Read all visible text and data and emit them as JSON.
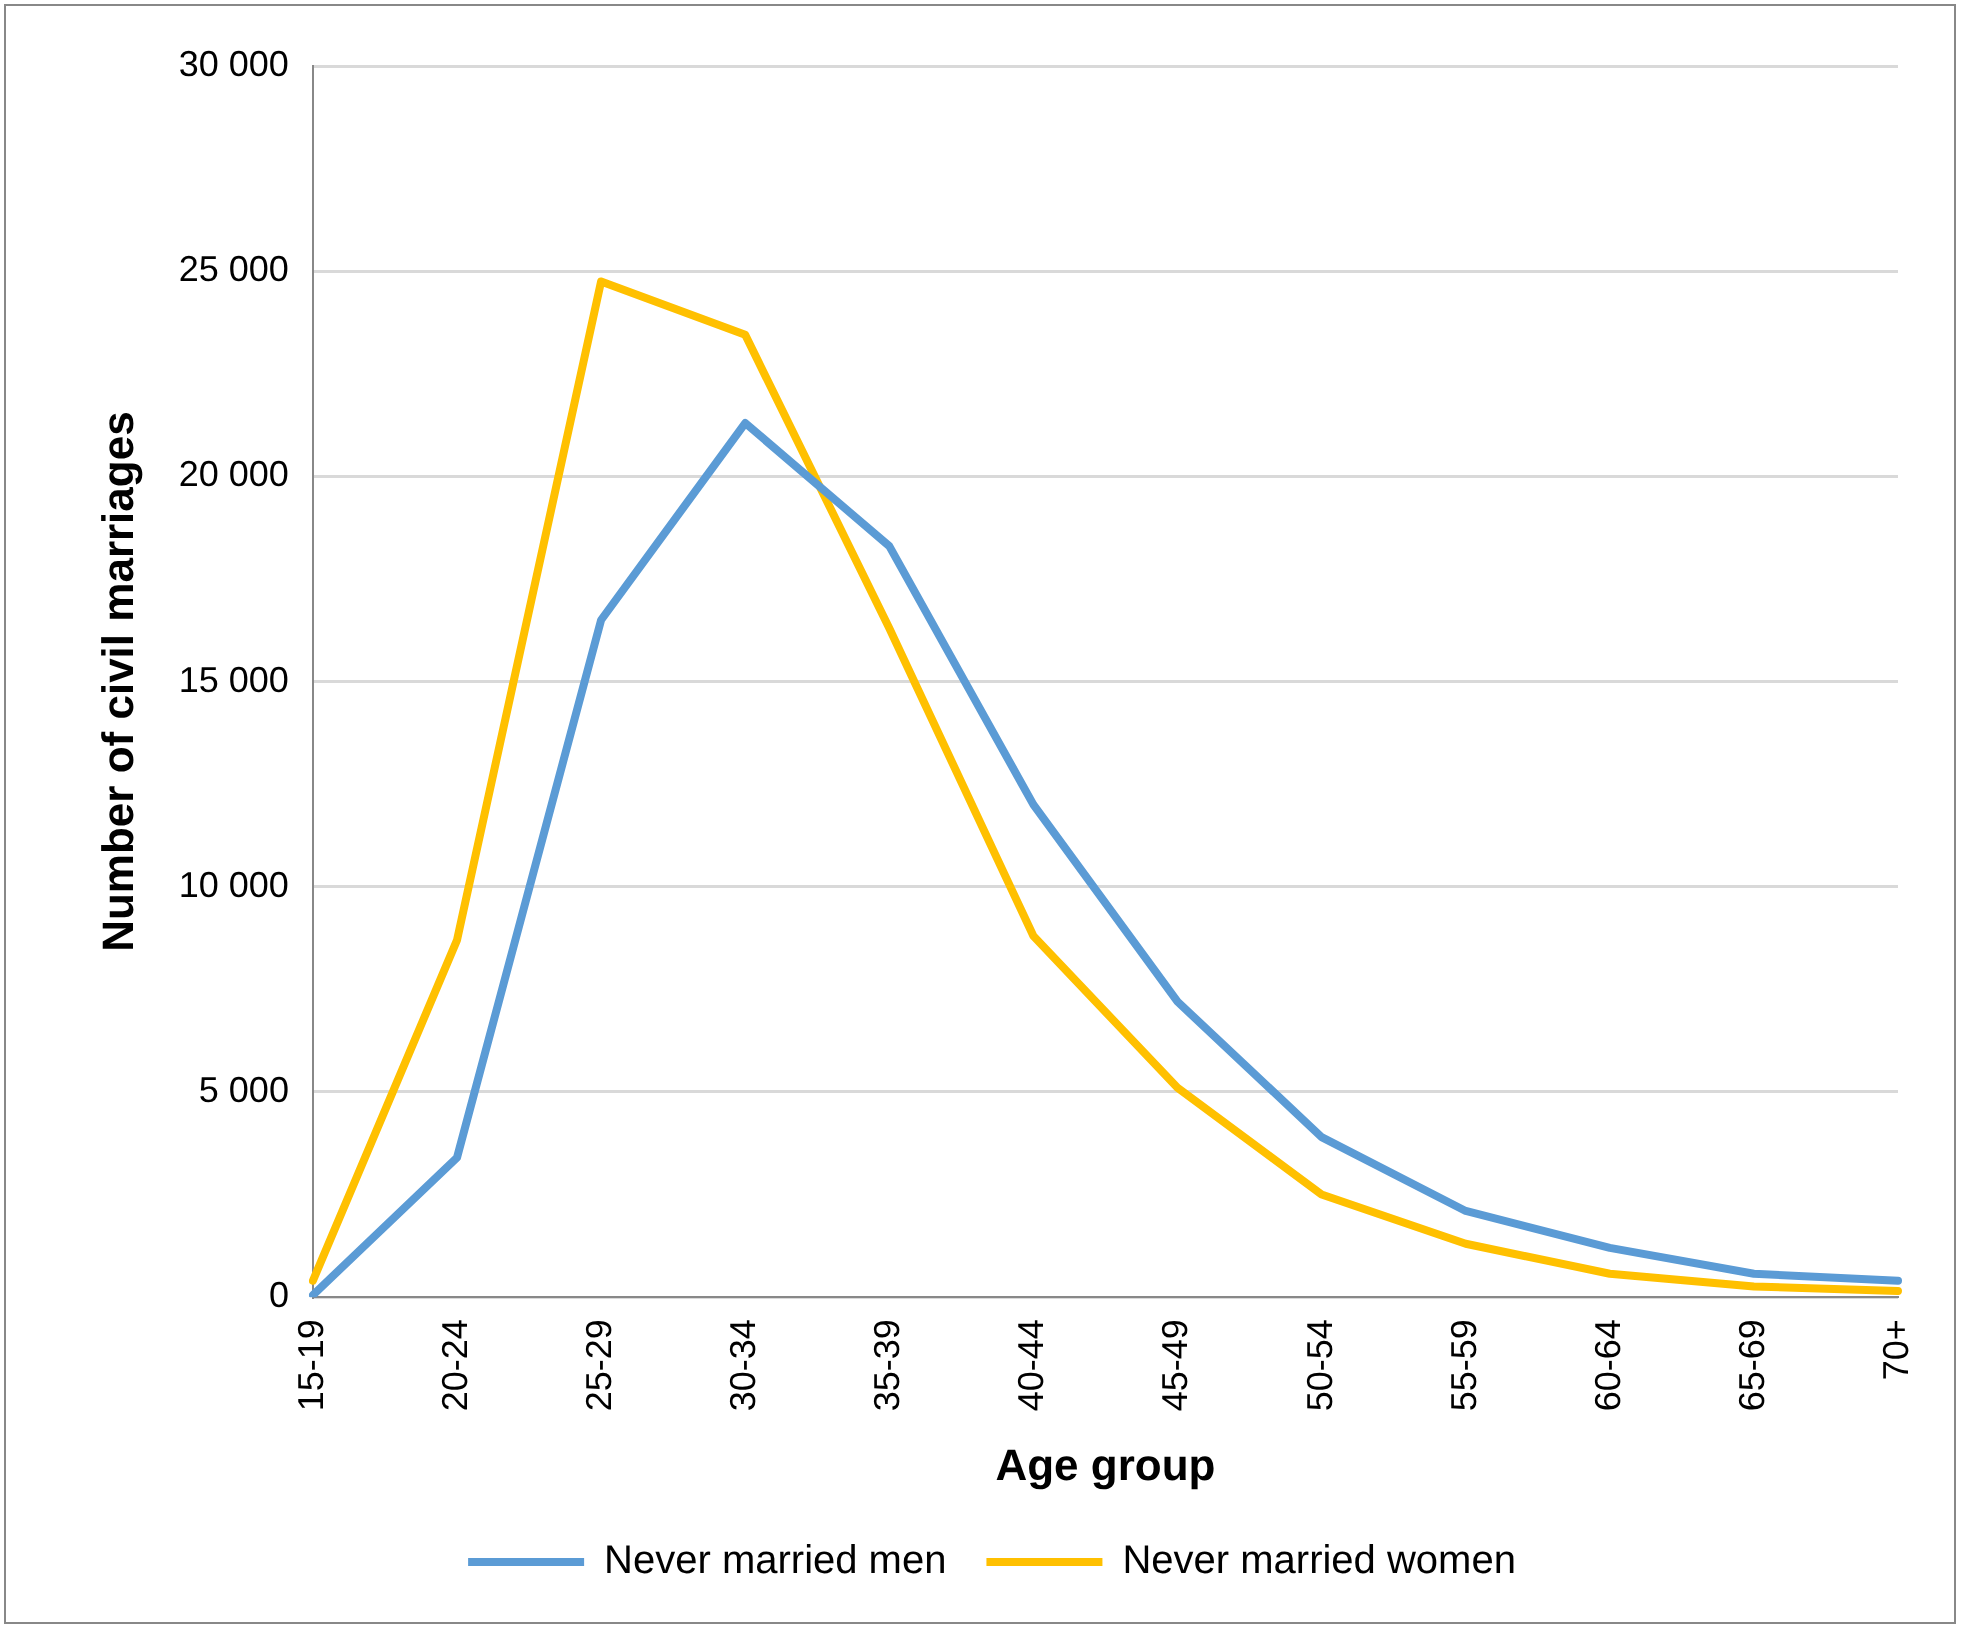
{
  "chart_data": {
    "type": "line",
    "xlabel": "Age group",
    "ylabel": "Number of civil marriages",
    "categories": [
      "15-19",
      "20-24",
      "25-29",
      "30-34",
      "35-39",
      "40-44",
      "45-49",
      "50-54",
      "55-59",
      "60-64",
      "65-69",
      "70+"
    ],
    "series": [
      {
        "name": "Never married men",
        "color": "#5b9bd5",
        "values": [
          50,
          3400,
          16500,
          21300,
          18300,
          12000,
          7200,
          3900,
          2100,
          1200,
          570,
          400
        ]
      },
      {
        "name": "Never married women",
        "color": "#ffc000",
        "values": [
          400,
          8700,
          24750,
          23450,
          16300,
          8800,
          5100,
          2500,
          1300,
          570,
          260,
          150
        ]
      }
    ],
    "ylim": [
      0,
      30000
    ],
    "yticks": [
      {
        "value": 0,
        "label": "0"
      },
      {
        "value": 5000,
        "label": "5 000"
      },
      {
        "value": 10000,
        "label": "10 000"
      },
      {
        "value": 15000,
        "label": "15 000"
      },
      {
        "value": 20000,
        "label": "20 000"
      },
      {
        "value": 25000,
        "label": "25 000"
      },
      {
        "value": 30000,
        "label": "30 000"
      }
    ],
    "grid": "y",
    "legend": "bottom",
    "marker": "none",
    "line_style": "solid"
  }
}
